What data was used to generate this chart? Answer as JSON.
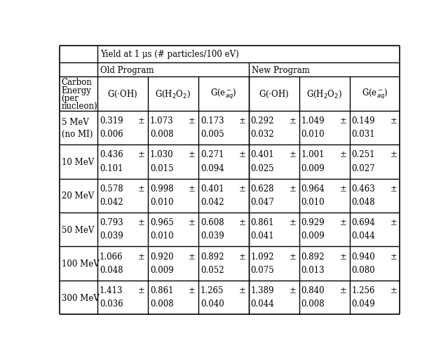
{
  "yield_header": "Yield at 1 μs (# particles/100 eV)",
  "old_program_header": "Old Program",
  "new_program_header": "New Program",
  "col0_header_lines": [
    "Carbon",
    "Energy",
    "(per",
    "nucleon)"
  ],
  "subheader_display": [
    "G(·OH)",
    "G(H₂O₂)",
    "G(eₐᵗ⁻)",
    "G(·OH)",
    "G(H₂O₂)",
    "G(eₐᵗ⁻)"
  ],
  "row_label_lines": [
    [
      "5 MeV",
      "(no MI)"
    ],
    [
      "10 MeV"
    ],
    [
      "20 MeV"
    ],
    [
      "50 MeV"
    ],
    [
      "100 MeV"
    ],
    [
      "300 MeV"
    ]
  ],
  "data_values": [
    [
      [
        "0.319",
        "0.006"
      ],
      [
        "1.073",
        "0.008"
      ],
      [
        "0.173",
        "0.005"
      ],
      [
        "0.292",
        "0.032"
      ],
      [
        "1.049",
        "0.010"
      ],
      [
        "0.149",
        "0.031"
      ]
    ],
    [
      [
        "0.436",
        "0.101"
      ],
      [
        "1.030",
        "0.015"
      ],
      [
        "0.271",
        "0.094"
      ],
      [
        "0.401",
        "0.025"
      ],
      [
        "1.001",
        "0.009"
      ],
      [
        "0.251",
        "0.027"
      ]
    ],
    [
      [
        "0.578",
        "0.042"
      ],
      [
        "0.998",
        "0.010"
      ],
      [
        "0.401",
        "0.042"
      ],
      [
        "0.628",
        "0.047"
      ],
      [
        "0.964",
        "0.010"
      ],
      [
        "0.463",
        "0.048"
      ]
    ],
    [
      [
        "0.793",
        "0.039"
      ],
      [
        "0.965",
        "0.010"
      ],
      [
        "0.608",
        "0.039"
      ],
      [
        "0.861",
        "0.041"
      ],
      [
        "0.929",
        "0.009"
      ],
      [
        "0.694",
        "0.044"
      ]
    ],
    [
      [
        "1.066",
        "0.048"
      ],
      [
        "0.920",
        "0.009"
      ],
      [
        "0.892",
        "0.052"
      ],
      [
        "1.092",
        "0.075"
      ],
      [
        "0.892",
        "0.013"
      ],
      [
        "0.940",
        "0.080"
      ]
    ],
    [
      [
        "1.413",
        "0.036"
      ],
      [
        "0.861",
        "0.008"
      ],
      [
        "1.265",
        "0.040"
      ],
      [
        "1.389",
        "0.044"
      ],
      [
        "0.840",
        "0.008"
      ],
      [
        "1.256",
        "0.049"
      ]
    ]
  ],
  "bg_color": "#ffffff",
  "text_color": "#000000",
  "line_color": "#000000",
  "font_size": 8.5
}
